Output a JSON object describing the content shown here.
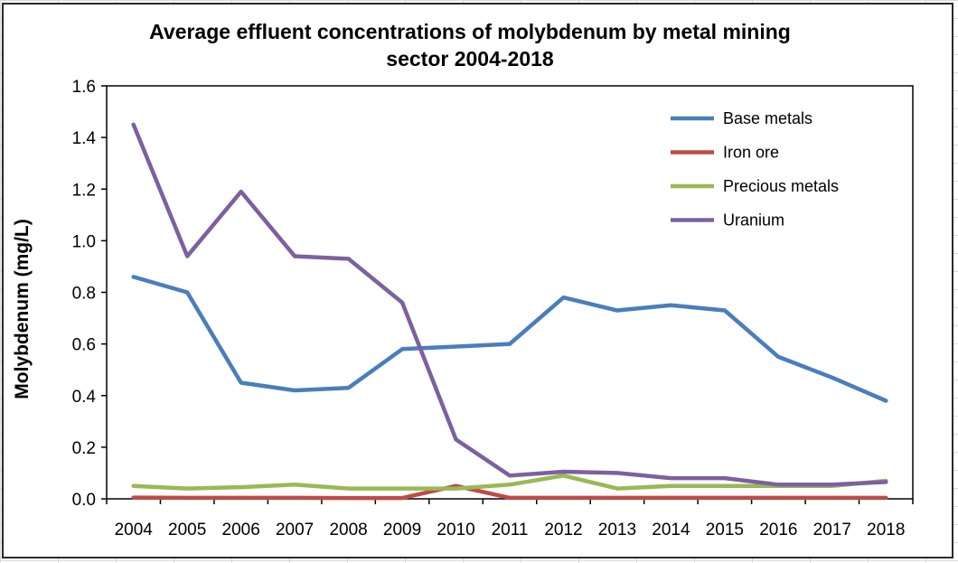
{
  "chart_data": {
    "type": "line",
    "title_line1": "Average effluent concentrations of molybdenum by metal mining",
    "title_line2": "sector 2004-2018",
    "xlabel": "",
    "ylabel": "Molybdenum (mg/L)",
    "ylim": [
      0,
      1.6
    ],
    "yticks": [
      "0.0",
      "0.2",
      "0.4",
      "0.6",
      "0.8",
      "1.0",
      "1.2",
      "1.4",
      "1.6"
    ],
    "categories": [
      "2004",
      "2005",
      "2006",
      "2007",
      "2008",
      "2009",
      "2010",
      "2011",
      "2012",
      "2013",
      "2014",
      "2015",
      "2016",
      "2017",
      "2018"
    ],
    "grid": false,
    "legend_position": "top-right",
    "series": [
      {
        "name": "Base metals",
        "color": "#4a7ebb",
        "values": [
          0.86,
          0.8,
          0.45,
          0.42,
          0.43,
          0.58,
          0.59,
          0.6,
          0.78,
          0.73,
          0.75,
          0.73,
          0.55,
          0.47,
          0.38
        ]
      },
      {
        "name": "Iron ore",
        "color": "#be4b48",
        "values": [
          0.005,
          0.004,
          0.004,
          0.004,
          0.003,
          0.003,
          0.05,
          0.004,
          0.004,
          0.004,
          0.004,
          0.004,
          0.004,
          0.004,
          0.004
        ]
      },
      {
        "name": "Precious metals",
        "color": "#98b954",
        "values": [
          0.05,
          0.04,
          0.045,
          0.055,
          0.04,
          0.04,
          0.04,
          0.055,
          0.09,
          0.04,
          0.05,
          0.05,
          0.05,
          0.05,
          0.07
        ]
      },
      {
        "name": "Uranium",
        "color": "#7d60a0",
        "values": [
          1.45,
          0.94,
          1.19,
          0.94,
          0.93,
          0.76,
          0.23,
          0.09,
          0.105,
          0.1,
          0.08,
          0.08,
          0.055,
          0.055,
          0.065
        ]
      }
    ]
  }
}
